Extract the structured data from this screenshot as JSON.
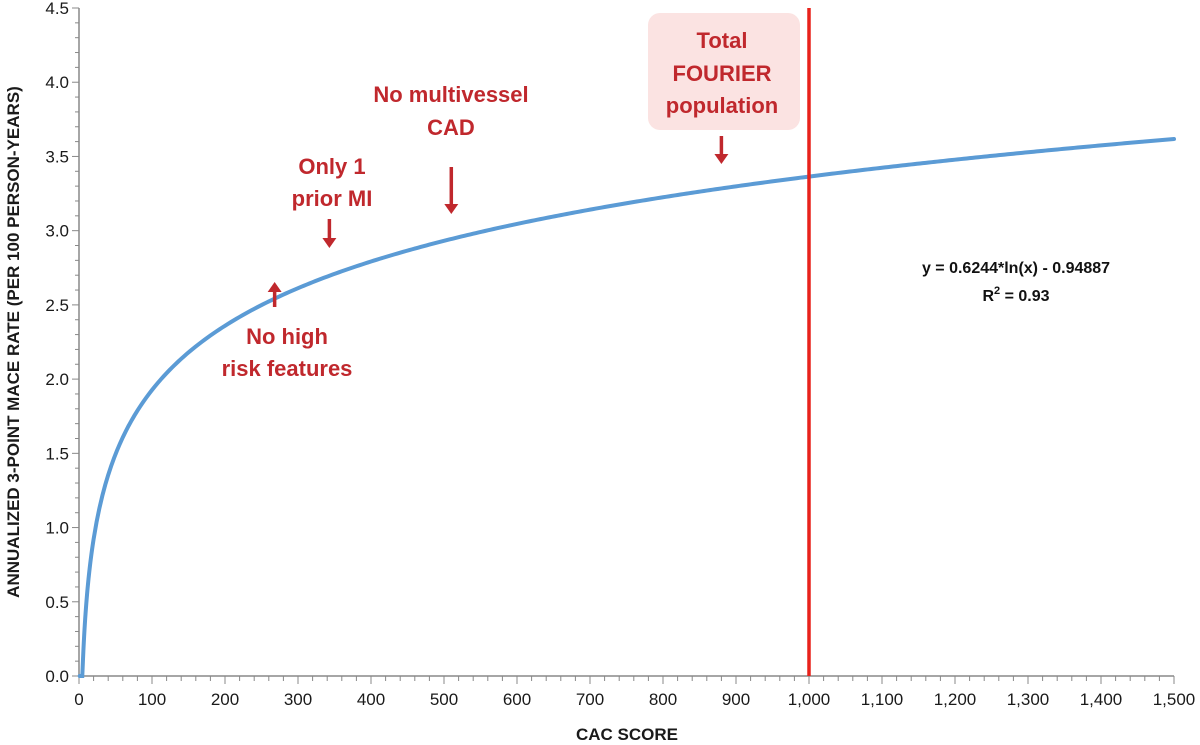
{
  "chart_data": {
    "type": "line",
    "title": "",
    "xlabel": "CAC SCORE",
    "ylabel": "ANNUALIZED 3-POINT MACE RATE (PER 100 PERSON-YEARS)",
    "xlim": [
      0,
      1500
    ],
    "ylim": [
      0,
      4.5
    ],
    "x_tick_labels": [
      "0",
      "100",
      "200",
      "300",
      "400",
      "500",
      "600",
      "700",
      "800",
      "900",
      "1,000",
      "1,100",
      "1,200",
      "1,300",
      "1,400",
      "1,500"
    ],
    "x_ticks": [
      0,
      100,
      200,
      300,
      400,
      500,
      600,
      700,
      800,
      900,
      1000,
      1100,
      1200,
      1300,
      1400,
      1500
    ],
    "y_tick_labels": [
      "0.0",
      "0.5",
      "1.0",
      "1.5",
      "2.0",
      "2.5",
      "3.0",
      "3.5",
      "4.0",
      "4.5"
    ],
    "y_ticks": [
      0,
      0.5,
      1.0,
      1.5,
      2.0,
      2.5,
      3.0,
      3.5,
      4.0,
      4.5
    ],
    "grid": false,
    "series": [
      {
        "name": "Fitted logarithmic curve",
        "color": "#5b9bd5",
        "function": {
          "a": 0.6244,
          "b": -0.94887,
          "x_start": 1,
          "x_end": 1500
        }
      }
    ],
    "reference_line": {
      "x": 1000,
      "color": "#e8221b"
    },
    "equation": {
      "line1": "y = 0.6244*ln(x) - 0.94887",
      "r2_prefix": "R",
      "r2_sup": "2",
      "r2_value": " = 0.93"
    },
    "annotations": [
      {
        "id": "no-high-risk",
        "lines": [
          "No high",
          "risk features"
        ],
        "x": 268,
        "arrow": "up",
        "color": "#c0282d"
      },
      {
        "id": "only-1-prior-mi",
        "lines": [
          "Only 1",
          "prior MI"
        ],
        "x": 343,
        "arrow": "down",
        "color": "#c0282d"
      },
      {
        "id": "no-multivessel",
        "lines": [
          "No multivessel",
          "CAD"
        ],
        "x": 510,
        "arrow": "down",
        "color": "#c0282d"
      },
      {
        "id": "total-fourier",
        "lines": [
          "Total",
          "FOURIER",
          "population"
        ],
        "x": 880,
        "arrow": "down",
        "color": "#c0282d",
        "box_fill": "#fbe3e2"
      }
    ]
  }
}
